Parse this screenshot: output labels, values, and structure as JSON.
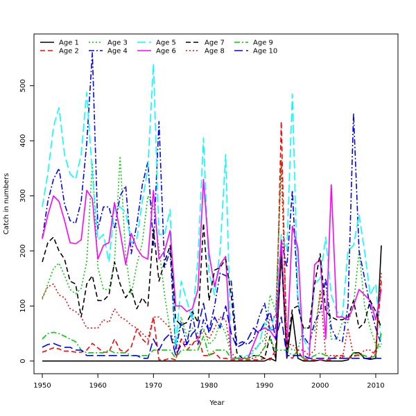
{
  "chart_data": {
    "type": "line",
    "title": "",
    "xlabel": "Year",
    "ylabel": "Catch in numbers",
    "xlim": [
      1948.5,
      2014
    ],
    "ylim": [
      -23,
      594
    ],
    "xticks": [
      1950,
      1960,
      1970,
      1980,
      1990,
      2000,
      2010
    ],
    "yticks": [
      0,
      100,
      200,
      300,
      400,
      500
    ],
    "x": [
      1950,
      1951,
      1952,
      1953,
      1954,
      1955,
      1956,
      1957,
      1958,
      1959,
      1960,
      1961,
      1962,
      1963,
      1964,
      1965,
      1966,
      1967,
      1968,
      1969,
      1970,
      1971,
      1972,
      1973,
      1974,
      1975,
      1976,
      1977,
      1978,
      1979,
      1980,
      1981,
      1982,
      1983,
      1984,
      1985,
      1986,
      1987,
      1988,
      1989,
      1990,
      1991,
      1992,
      1993,
      1994,
      1995,
      1996,
      1997,
      1998,
      1999,
      2000,
      2001,
      2002,
      2003,
      2004,
      2005,
      2006,
      2007,
      2008,
      2009,
      2010,
      2011
    ],
    "legend_rows": [
      [
        "Age 1",
        "Age 3",
        "Age 5",
        "Age 7",
        "Age 9"
      ],
      [
        "Age 2",
        "Age 4",
        "Age 6",
        "Age 8",
        "Age 10"
      ]
    ],
    "series": [
      {
        "name": "Age 1",
        "color": "#000000",
        "dash": "solid",
        "values": [
          0,
          0,
          0,
          0,
          0,
          0,
          0,
          0,
          0,
          0,
          0,
          0,
          0,
          0,
          0,
          0,
          0,
          0,
          0,
          0,
          0,
          0,
          0,
          0,
          0,
          0,
          0,
          0,
          0,
          0,
          0,
          0,
          0,
          0,
          0,
          0,
          0,
          0,
          0,
          0,
          0,
          5,
          0,
          200,
          5,
          85,
          5,
          0,
          0,
          0,
          2,
          0,
          0,
          0,
          0,
          2,
          15,
          15,
          5,
          3,
          5,
          210
        ]
      },
      {
        "name": "Age 2",
        "color": "#ff0000",
        "dash": "dash",
        "values": [
          16,
          20,
          24,
          22,
          18,
          18,
          16,
          16,
          20,
          32,
          24,
          16,
          16,
          40,
          20,
          16,
          26,
          58,
          40,
          30,
          80,
          2,
          2,
          5,
          2,
          40,
          20,
          30,
          45,
          10,
          10,
          15,
          5,
          5,
          2,
          2,
          2,
          2,
          2,
          2,
          5,
          2,
          20,
          435,
          10,
          5,
          20,
          2,
          2,
          2,
          2,
          2,
          2,
          10,
          10,
          5,
          8,
          12,
          10,
          5,
          20,
          145
        ]
      },
      {
        "name": "Age 3",
        "color": "#00cd00",
        "dash": "dot",
        "values": [
          112,
          140,
          168,
          178,
          155,
          130,
          122,
          132,
          180,
          360,
          170,
          130,
          130,
          180,
          372,
          190,
          120,
          175,
          215,
          300,
          280,
          205,
          120,
          55,
          25,
          80,
          45,
          60,
          50,
          60,
          30,
          40,
          70,
          50,
          10,
          5,
          5,
          10,
          20,
          30,
          40,
          120,
          90,
          360,
          30,
          20,
          20,
          60,
          60,
          55,
          120,
          140,
          40,
          40,
          70,
          70,
          100,
          200,
          100,
          60,
          30,
          25
        ]
      },
      {
        "name": "Age 4",
        "color": "#0000ff",
        "dash": "dashdot",
        "values": [
          222,
          290,
          330,
          350,
          285,
          255,
          250,
          290,
          395,
          560,
          240,
          280,
          280,
          240,
          300,
          318,
          195,
          248,
          320,
          362,
          210,
          435,
          170,
          200,
          20,
          70,
          30,
          85,
          30,
          75,
          55,
          100,
          160,
          155,
          145,
          30,
          35,
          30,
          40,
          80,
          105,
          55,
          60,
          220,
          170,
          310,
          110,
          45,
          30,
          70,
          90,
          150,
          60,
          40,
          35,
          100,
          450,
          200,
          150,
          100,
          60,
          30
        ]
      },
      {
        "name": "Age 5",
        "color": "#00ffff",
        "dash": "longdash",
        "values": [
          280,
          340,
          425,
          460,
          375,
          340,
          330,
          375,
          488,
          340,
          220,
          230,
          180,
          280,
          280,
          270,
          215,
          220,
          290,
          350,
          540,
          230,
          230,
          275,
          25,
          145,
          110,
          75,
          185,
          405,
          160,
          120,
          200,
          375,
          10,
          5,
          10,
          10,
          15,
          30,
          70,
          55,
          90,
          230,
          200,
          485,
          120,
          40,
          20,
          140,
          150,
          225,
          120,
          90,
          80,
          200,
          210,
          265,
          200,
          120,
          140,
          30
        ]
      },
      {
        "name": "Age 6",
        "color": "#ff00ff",
        "dash": "solid",
        "values": [
          222,
          265,
          300,
          290,
          255,
          215,
          213,
          220,
          310,
          295,
          185,
          210,
          215,
          288,
          235,
          175,
          232,
          205,
          190,
          185,
          310,
          185,
          200,
          237,
          100,
          100,
          90,
          95,
          130,
          330,
          195,
          135,
          175,
          190,
          5,
          5,
          5,
          5,
          30,
          55,
          60,
          55,
          40,
          220,
          20,
          245,
          205,
          5,
          5,
          175,
          185,
          40,
          320,
          80,
          80,
          75,
          100,
          130,
          120,
          110,
          75,
          130
        ]
      },
      {
        "name": "Age 7",
        "color": "#000000",
        "dash": "dash",
        "values": [
          180,
          215,
          225,
          200,
          185,
          145,
          140,
          80,
          140,
          155,
          110,
          110,
          120,
          180,
          140,
          115,
          130,
          95,
          115,
          100,
          240,
          145,
          180,
          210,
          75,
          65,
          70,
          90,
          70,
          250,
          110,
          165,
          170,
          185,
          120,
          15,
          5,
          5,
          10,
          10,
          5,
          45,
          5,
          190,
          20,
          95,
          100,
          60,
          60,
          140,
          195,
          90,
          80,
          75,
          75,
          80,
          110,
          60,
          70,
          110,
          90,
          60
        ]
      },
      {
        "name": "Age 8",
        "color": "#ff0000",
        "dash": "dot",
        "values": [
          115,
          135,
          140,
          120,
          115,
          95,
          90,
          80,
          60,
          60,
          60,
          75,
          70,
          95,
          80,
          75,
          65,
          60,
          50,
          40,
          80,
          80,
          70,
          60,
          10,
          40,
          30,
          30,
          40,
          55,
          40,
          60,
          80,
          75,
          15,
          5,
          5,
          5,
          5,
          10,
          25,
          80,
          80,
          365,
          30,
          30,
          20,
          20,
          10,
          20,
          130,
          10,
          10,
          10,
          5,
          60,
          10,
          10,
          20,
          20,
          10,
          160
        ]
      },
      {
        "name": "Age 9",
        "color": "#00cd00",
        "dash": "dashdot",
        "values": [
          40,
          50,
          52,
          50,
          45,
          40,
          35,
          20,
          15,
          15,
          15,
          15,
          20,
          15,
          15,
          15,
          10,
          10,
          10,
          10,
          20,
          20,
          20,
          20,
          5,
          20,
          20,
          20,
          20,
          45,
          10,
          20,
          20,
          20,
          5,
          5,
          5,
          5,
          10,
          10,
          25,
          40,
          20,
          20,
          20,
          10,
          15,
          5,
          5,
          10,
          15,
          10,
          5,
          5,
          5,
          5,
          15,
          10,
          10,
          5,
          10,
          50
        ]
      },
      {
        "name": "Age 10",
        "color": "#0000ff",
        "dash": "longdash",
        "values": [
          25,
          30,
          32,
          28,
          25,
          25,
          20,
          20,
          10,
          10,
          10,
          10,
          10,
          10,
          10,
          10,
          10,
          10,
          5,
          5,
          40,
          20,
          40,
          50,
          10,
          30,
          30,
          50,
          60,
          105,
          50,
          80,
          60,
          100,
          50,
          25,
          30,
          40,
          60,
          50,
          70,
          90,
          40,
          80,
          10,
          10,
          10,
          10,
          5,
          5,
          5,
          5,
          5,
          5,
          5,
          5,
          5,
          5,
          5,
          5,
          5,
          5
        ]
      }
    ]
  }
}
